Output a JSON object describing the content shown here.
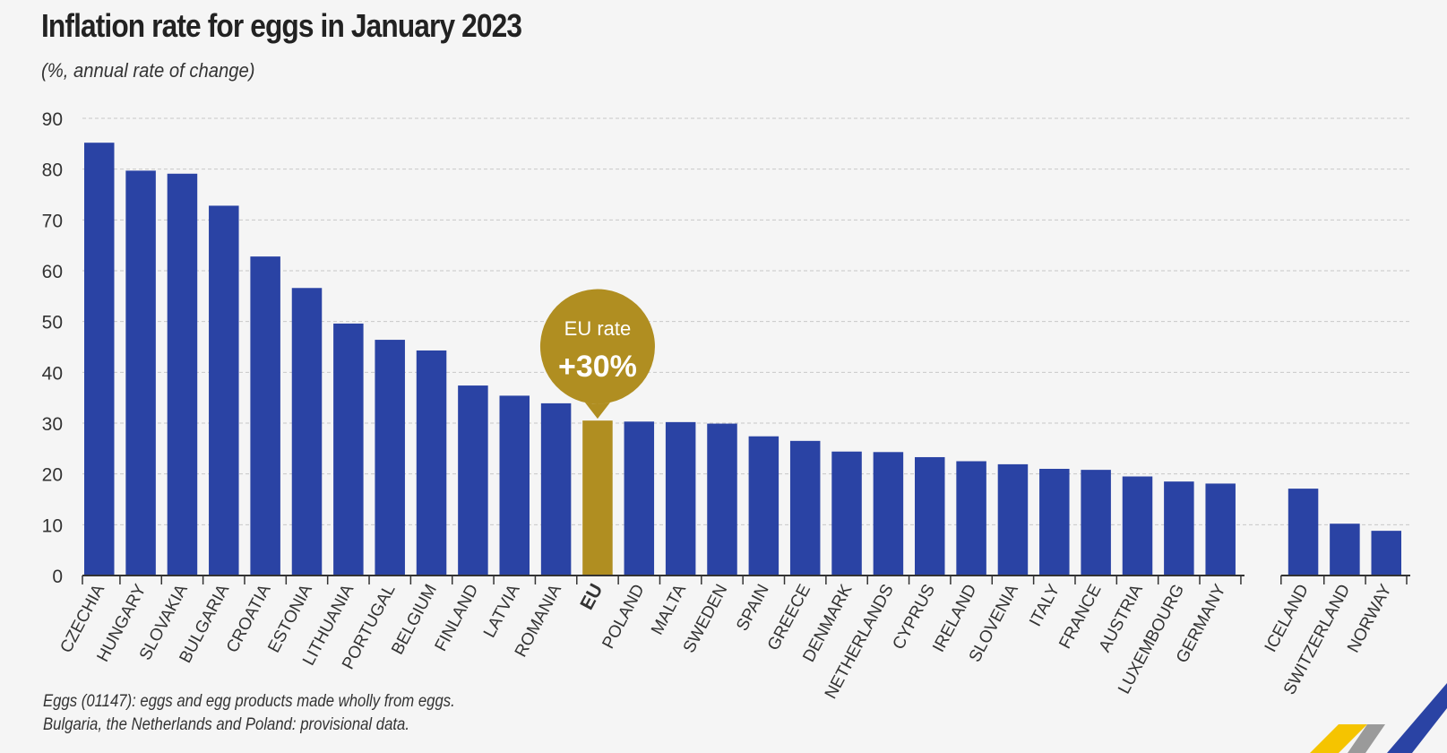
{
  "chart_data": {
    "type": "bar",
    "title": "Inflation rate for eggs in January 2023",
    "subtitle": "(%, annual rate of change)",
    "ylim": [
      0,
      90
    ],
    "yticks": [
      0,
      10,
      20,
      30,
      40,
      50,
      60,
      70,
      80,
      90
    ],
    "grid": true,
    "highlight_category": "EU",
    "categories": [
      "CZECHIA",
      "HUNGARY",
      "SLOVAKIA",
      "BULGARIA",
      "CROATIA",
      "ESTONIA",
      "LITHUANIA",
      "PORTUGAL",
      "BELGIUM",
      "FINLAND",
      "LATVIA",
      "ROMANIA",
      "EU",
      "POLAND",
      "MALTA",
      "SWEDEN",
      "SPAIN",
      "GREECE",
      "DENMARK",
      "NETHERLANDS",
      "CYPRUS",
      "IRELAND",
      "SLOVENIA",
      "ITALY",
      "FRANCE",
      "AUSTRIA",
      "LUXEMBOURG",
      "GERMANY",
      "ICELAND",
      "SWITZERLAND",
      "NORWAY"
    ],
    "values": [
      85.2,
      79.7,
      79.1,
      72.8,
      62.8,
      56.6,
      49.6,
      46.4,
      44.3,
      37.4,
      35.4,
      33.9,
      30.5,
      30.3,
      30.2,
      29.9,
      27.4,
      26.5,
      24.4,
      24.3,
      23.3,
      22.5,
      21.9,
      21.0,
      20.8,
      19.5,
      18.5,
      18.1,
      17.1,
      10.2,
      8.8
    ],
    "group_breaks_after": [
      "GERMANY"
    ],
    "colors": {
      "bar": "#2a43a4",
      "highlight": "#b08e21",
      "grid": "#c8c8c8",
      "axis": "#333333"
    },
    "annotation": {
      "label": "EU rate",
      "value_text": "+30%",
      "category": "EU"
    }
  },
  "footnotes": [
    "Eggs (01147): eggs and egg products made wholly from eggs.",
    "Bulgaria, the Netherlands and Poland: provisional data."
  ],
  "logo_colors": {
    "yellow": "#f5c400",
    "grey": "#9a9a9a",
    "blue": "#2a43a4"
  }
}
